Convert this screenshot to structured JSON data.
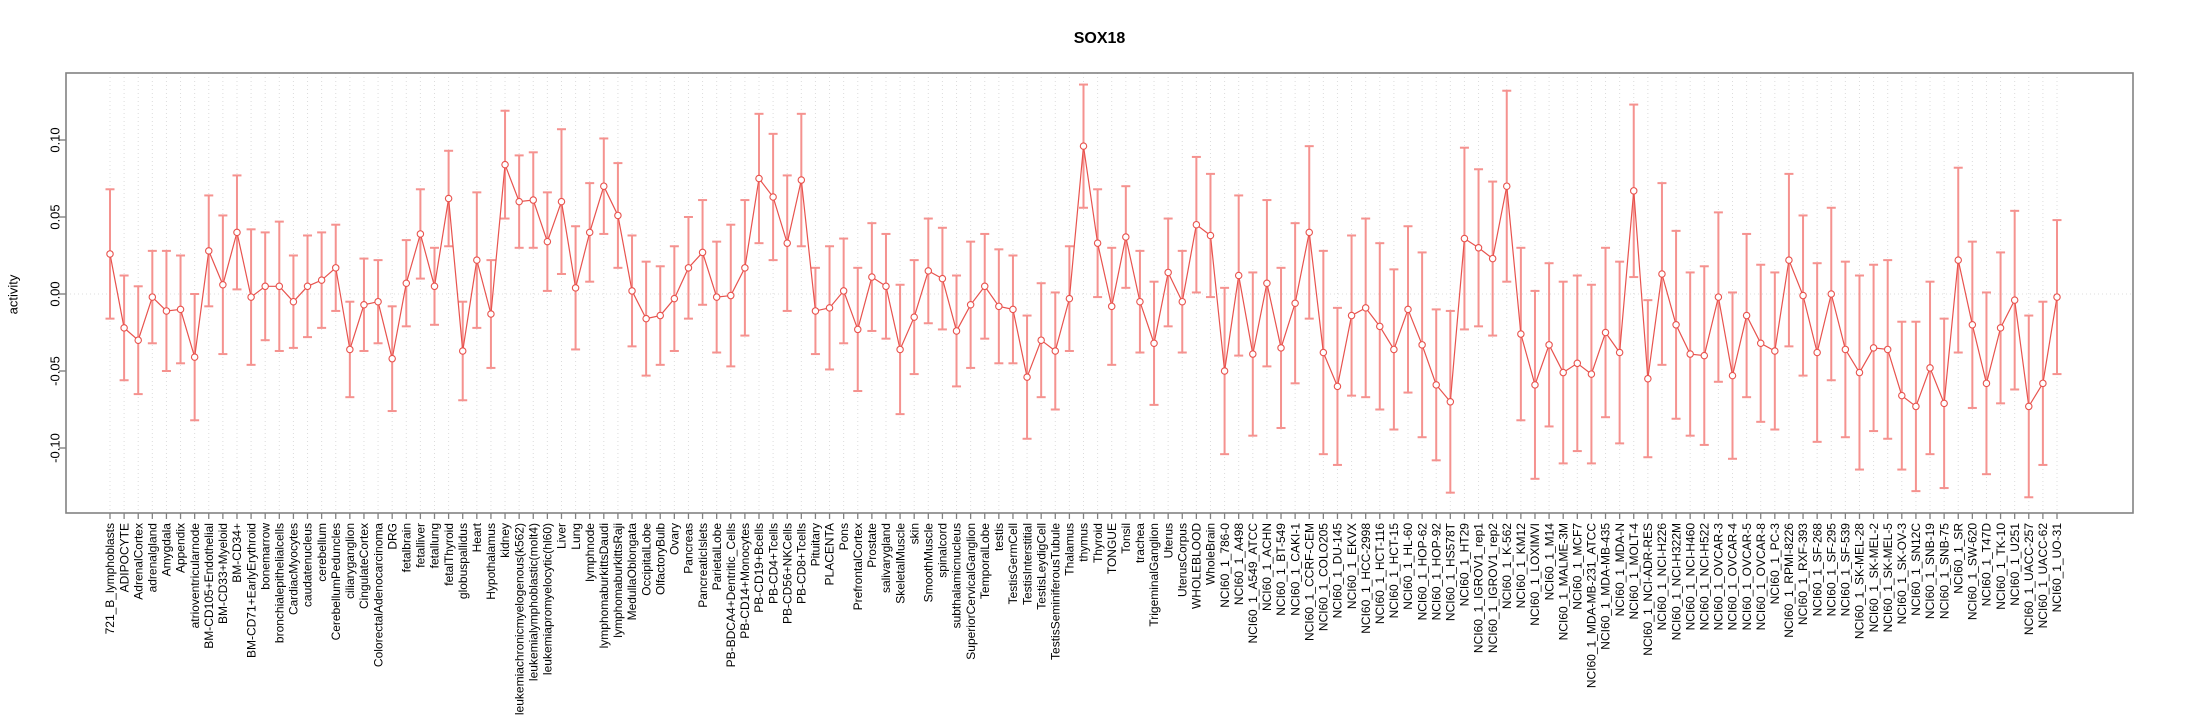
{
  "chart_data": {
    "type": "line",
    "subtype": "point-estimates-with-error-bars",
    "title": "SOX18",
    "xlabel": "",
    "ylabel": "activity",
    "ylim": [
      -0.142,
      0.143
    ],
    "yticks": [
      0.1,
      0.05,
      0.0,
      -0.05,
      -0.1
    ],
    "ytick_labels": [
      "0.10",
      "0.05",
      "0.00",
      "-0.05",
      "-0.10"
    ],
    "grid": {
      "vertical_per_category": true,
      "zero_line": true
    },
    "legend": null,
    "marker": "open-circle",
    "colors": {
      "line": "#e8534e",
      "marker": "#e8534e",
      "error_bar": "#f5928f",
      "grid": "#dcdcdc",
      "box": "#828282",
      "text": "#000000",
      "background": "#ffffff"
    },
    "categories": [
      "721_B_lymphoblasts",
      "ADIPOCYTE",
      "AdrenalCortex",
      "adrenalgland",
      "Amygdala",
      "Appendix",
      "atrioventricularnode",
      "BM-CD105+Endothelial",
      "BM-CD33+Myeloid",
      "BM-CD34+",
      "BM-CD71+EarlyErythroid",
      "bonemarrow",
      "bronchialepithelialcells",
      "CardiacMyocytes",
      "caudatenucleus",
      "cerebellum",
      "CerebellumPeduncles",
      "ciliaryganglion",
      "CingulateCortex",
      "ColorectalAdenocarcinoma",
      "DRG",
      "fetalbrain",
      "fetalliver",
      "fetallung",
      "fetalThyroid",
      "globuspallidus",
      "Heart",
      "Hypothalamus",
      "kidney",
      "leukemiachronicmyelogenous(k562)",
      "leukemialymphoblastic(molt4)",
      "leukemiapromyelocytic(hl60)",
      "Liver",
      "Lung",
      "lymphnode",
      "lymphomaburkittsDaudi",
      "lymphomaburkittsRaji",
      "MedullaOblongata",
      "OccipitalLobe",
      "OlfactoryBulb",
      "Ovary",
      "Pancreas",
      "PancreaticIslets",
      "ParietalLobe",
      "PB-BDCA4+Dentritic_Cells",
      "PB-CD14+Monocytes",
      "PB-CD19+Bcells",
      "PB-CD4+Tcells",
      "PB-CD56+NKCells",
      "PB-CD8+Tcells",
      "Pituitary",
      "PLACENTA",
      "Pons",
      "PrefrontalCortex",
      "Prostate",
      "salivarygland",
      "SkeletalMuscle",
      "skin",
      "SmoothMuscle",
      "spinalcord",
      "subthalamicnucleus",
      "SuperiorCervicalGanglion",
      "TemporalLobe",
      "testis",
      "TestisGermCell",
      "TestisInterstitial",
      "TestisLeydigCell",
      "TestisSeminiferousTubule",
      "Thalamus",
      "thymus",
      "Thyroid",
      "TONGUE",
      "Tonsil",
      "trachea",
      "TrigeminalGanglion",
      "Uterus",
      "UterusCorpus",
      "WHOLEBLOOD",
      "WholeBrain",
      "NCI60_1_786-0",
      "NCI60_1_A498",
      "NCI60_1_A549_ATCC",
      "NCI60_1_ACHN",
      "NCI60_1_BT-549",
      "NCI60_1_CAKI-1",
      "NCI60_1_CCRF-CEM",
      "NCI60_1_COLO205",
      "NCI60_1_DU-145",
      "NCI60_1_EKVX",
      "NCI60_1_HCC-2998",
      "NCI60_1_HCT-116",
      "NCI60_1_HCT-15",
      "NCI60_1_HL-60",
      "NCI60_1_HOP-62",
      "NCI60_1_HOP-92",
      "NCI60_1_HS578T",
      "NCI60_1_HT29",
      "NCI60_1_IGROV1_rep1",
      "NCI60_1_IGROV1_rep2",
      "NCI60_1_K-562",
      "NCI60_1_KM12",
      "NCI60_1_LOXIMVI",
      "NCI60_1_M14",
      "NCI60_1_MALME-3M",
      "NCI60_1_MCF7",
      "NCI60_1_MDA-MB-231_ATCC",
      "NCI60_1_MDA-MB-435",
      "NCI60_1_MDA-N",
      "NCI60_1_MOLT-4",
      "NCI60_1_NCI-ADR-RES",
      "NCI60_1_NCI-H226",
      "NCI60_1_NCI-H322M",
      "NCI60_1_NCI-H460",
      "NCI60_1_NCI-H522",
      "NCI60_1_OVCAR-3",
      "NCI60_1_OVCAR-4",
      "NCI60_1_OVCAR-5",
      "NCI60_1_OVCAR-8",
      "NCI60_1_PC-3",
      "NCI60_1_RPMI-8226",
      "NCI60_1_RXF-393",
      "NCI60_1_SF-268",
      "NCI60_1_SF-295",
      "NCI60_1_SF-539",
      "NCI60_1_SK-MEL-28",
      "NCI60_1_SK-MEL-2",
      "NCI60_1_SK-MEL-5",
      "NCI60_1_SK-OV-3",
      "NCI60_1_SN12C",
      "NCI60_1_SNB-19",
      "NCI60_1_SNB-75",
      "NCI60_1_SR",
      "NCI60_1_SW-620",
      "NCI60_1_T47D",
      "NCI60_1_TK-10",
      "NCI60_1_U251",
      "NCI60_1_UACC-257",
      "NCI60_1_UACC-62",
      "NCI60_1_UO-31"
    ],
    "series": [
      {
        "name": "activity",
        "values": [
          0.026,
          -0.022,
          -0.03,
          -0.002,
          -0.011,
          -0.01,
          -0.041,
          0.028,
          0.006,
          0.04,
          -0.002,
          0.005,
          0.005,
          -0.005,
          0.005,
          0.009,
          0.017,
          -0.036,
          -0.007,
          -0.005,
          -0.042,
          0.007,
          0.039,
          0.005,
          0.062,
          -0.037,
          0.022,
          -0.013,
          0.084,
          0.06,
          0.061,
          0.034,
          0.06,
          0.004,
          0.04,
          0.07,
          0.051,
          0.002,
          -0.016,
          -0.014,
          -0.003,
          0.017,
          0.027,
          -0.002,
          -0.001,
          0.017,
          0.075,
          0.063,
          0.033,
          0.074,
          -0.011,
          -0.009,
          0.002,
          -0.023,
          0.011,
          0.005,
          -0.036,
          -0.015,
          0.015,
          0.01,
          -0.024,
          -0.007,
          0.005,
          -0.008,
          -0.01,
          -0.054,
          -0.03,
          -0.037,
          -0.003,
          0.096,
          0.033,
          -0.008,
          0.037,
          -0.005,
          -0.032,
          0.014,
          -0.005,
          0.045,
          0.038,
          -0.05,
          0.012,
          -0.039,
          0.007,
          -0.035,
          -0.006,
          0.04,
          -0.038,
          -0.06,
          -0.014,
          -0.009,
          -0.021,
          -0.036,
          -0.01,
          -0.033,
          -0.059,
          -0.07,
          0.036,
          0.03,
          0.023,
          0.07,
          -0.026,
          -0.059,
          -0.033,
          -0.051,
          -0.045,
          -0.052,
          -0.025,
          -0.038,
          0.067,
          -0.055,
          0.013,
          -0.02,
          -0.039,
          -0.04,
          -0.002,
          -0.053,
          -0.014,
          -0.032,
          -0.037,
          0.022,
          -0.001,
          -0.038,
          0.0,
          -0.036,
          -0.051,
          -0.035,
          -0.036,
          -0.066,
          -0.073,
          -0.048,
          -0.071,
          0.022,
          -0.02,
          -0.058,
          -0.022,
          -0.004,
          -0.073,
          -0.058,
          -0.002
        ],
        "errors": [
          0.042,
          0.034,
          0.035,
          0.03,
          0.039,
          0.035,
          0.041,
          0.036,
          0.045,
          0.037,
          0.044,
          0.035,
          0.042,
          0.03,
          0.033,
          0.031,
          0.028,
          0.031,
          0.03,
          0.027,
          0.034,
          0.028,
          0.029,
          0.025,
          0.031,
          0.032,
          0.044,
          0.035,
          0.035,
          0.03,
          0.031,
          0.032,
          0.047,
          0.04,
          0.032,
          0.031,
          0.034,
          0.036,
          0.037,
          0.032,
          0.034,
          0.033,
          0.034,
          0.036,
          0.046,
          0.044,
          0.042,
          0.041,
          0.044,
          0.043,
          0.028,
          0.04,
          0.034,
          0.04,
          0.035,
          0.034,
          0.042,
          0.037,
          0.034,
          0.033,
          0.036,
          0.041,
          0.034,
          0.037,
          0.035,
          0.04,
          0.037,
          0.038,
          0.034,
          0.04,
          0.035,
          0.038,
          0.033,
          0.033,
          0.04,
          0.035,
          0.033,
          0.044,
          0.04,
          0.054,
          0.052,
          0.053,
          0.054,
          0.052,
          0.052,
          0.056,
          0.066,
          0.051,
          0.052,
          0.058,
          0.054,
          0.052,
          0.054,
          0.06,
          0.049,
          0.059,
          0.059,
          0.051,
          0.05,
          0.062,
          0.056,
          0.061,
          0.053,
          0.059,
          0.057,
          0.058,
          0.055,
          0.059,
          0.056,
          0.051,
          0.059,
          0.061,
          0.053,
          0.058,
          0.055,
          0.054,
          0.053,
          0.051,
          0.051,
          0.056,
          0.052,
          0.058,
          0.056,
          0.057,
          0.063,
          0.054,
          0.058,
          0.048,
          0.055,
          0.056,
          0.055,
          0.06,
          0.054,
          0.059,
          0.049,
          0.058,
          0.059,
          0.053,
          0.05
        ]
      }
    ]
  }
}
